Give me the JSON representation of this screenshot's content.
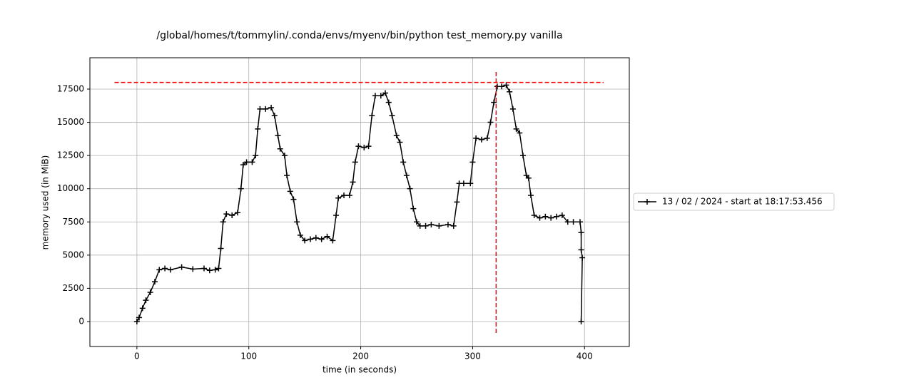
{
  "chart_data": {
    "type": "line",
    "title": "/global/homes/t/tommylin/.conda/envs/myenv/bin/python test_memory.py vanilla",
    "x_label": "time (in seconds)",
    "y_label": "memory used (in MiB)",
    "xlim": [
      -42,
      440
    ],
    "ylim": [
      -1880,
      19860
    ],
    "xticks": [
      0,
      100,
      200,
      300,
      400
    ],
    "yticks": [
      0,
      2500,
      5000,
      7500,
      10000,
      12500,
      15000,
      17500
    ],
    "grid": true,
    "legend_position": "right",
    "series": [
      {
        "name": "13 / 02 / 2024 - start at 18:17:53.456",
        "color": "#000000",
        "x": [
          0,
          2,
          5,
          8,
          12,
          16,
          20,
          25,
          30,
          40,
          50,
          60,
          65,
          70,
          73,
          75,
          77,
          80,
          85,
          90,
          93,
          95,
          98,
          103,
          106,
          108,
          110,
          115,
          120,
          123,
          126,
          128,
          132,
          134,
          137,
          140,
          143,
          146,
          150,
          155,
          160,
          165,
          170,
          175,
          178,
          180,
          185,
          190,
          193,
          195,
          198,
          203,
          207,
          210,
          213,
          218,
          222,
          225,
          228,
          232,
          235,
          238,
          241,
          244,
          247,
          250,
          253,
          258,
          263,
          270,
          278,
          283,
          286,
          288,
          292,
          298,
          300,
          303,
          308,
          313,
          316,
          319,
          322,
          326,
          330,
          333,
          336,
          339,
          342,
          345,
          348,
          350,
          352,
          355,
          360,
          365,
          370,
          375,
          380,
          385,
          390,
          396,
          397,
          397,
          398,
          397
        ],
        "values": [
          0,
          300,
          1000,
          1600,
          2200,
          3000,
          3900,
          4000,
          3900,
          4100,
          3950,
          4000,
          3850,
          3900,
          4000,
          5500,
          7500,
          8100,
          8000,
          8200,
          10000,
          11800,
          12000,
          12000,
          12500,
          14500,
          16000,
          16000,
          16100,
          15500,
          14000,
          13000,
          12500,
          11000,
          9800,
          9200,
          7500,
          6500,
          6100,
          6200,
          6300,
          6200,
          6400,
          6100,
          8000,
          9300,
          9500,
          9500,
          10500,
          12000,
          13200,
          13100,
          13200,
          15500,
          17000,
          17000,
          17200,
          16500,
          15500,
          14000,
          13500,
          12000,
          11000,
          10000,
          8500,
          7500,
          7200,
          7200,
          7300,
          7200,
          7300,
          7200,
          9000,
          10400,
          10400,
          10400,
          12000,
          13800,
          13700,
          13800,
          15000,
          16500,
          17700,
          17700,
          17800,
          17300,
          16000,
          14500,
          14200,
          12500,
          11000,
          10800,
          9500,
          8000,
          7800,
          7900,
          7800,
          7900,
          8000,
          7500,
          7500,
          7500,
          6700,
          5400,
          4800,
          0
        ]
      }
    ],
    "max_memory_line": {
      "y": 18000,
      "x_range": [
        -20,
        417
      ],
      "color": "#ff0000"
    },
    "max_time_line": {
      "x": 321,
      "y_range": [
        -860,
        18900
      ],
      "color": "#ff0000"
    }
  }
}
